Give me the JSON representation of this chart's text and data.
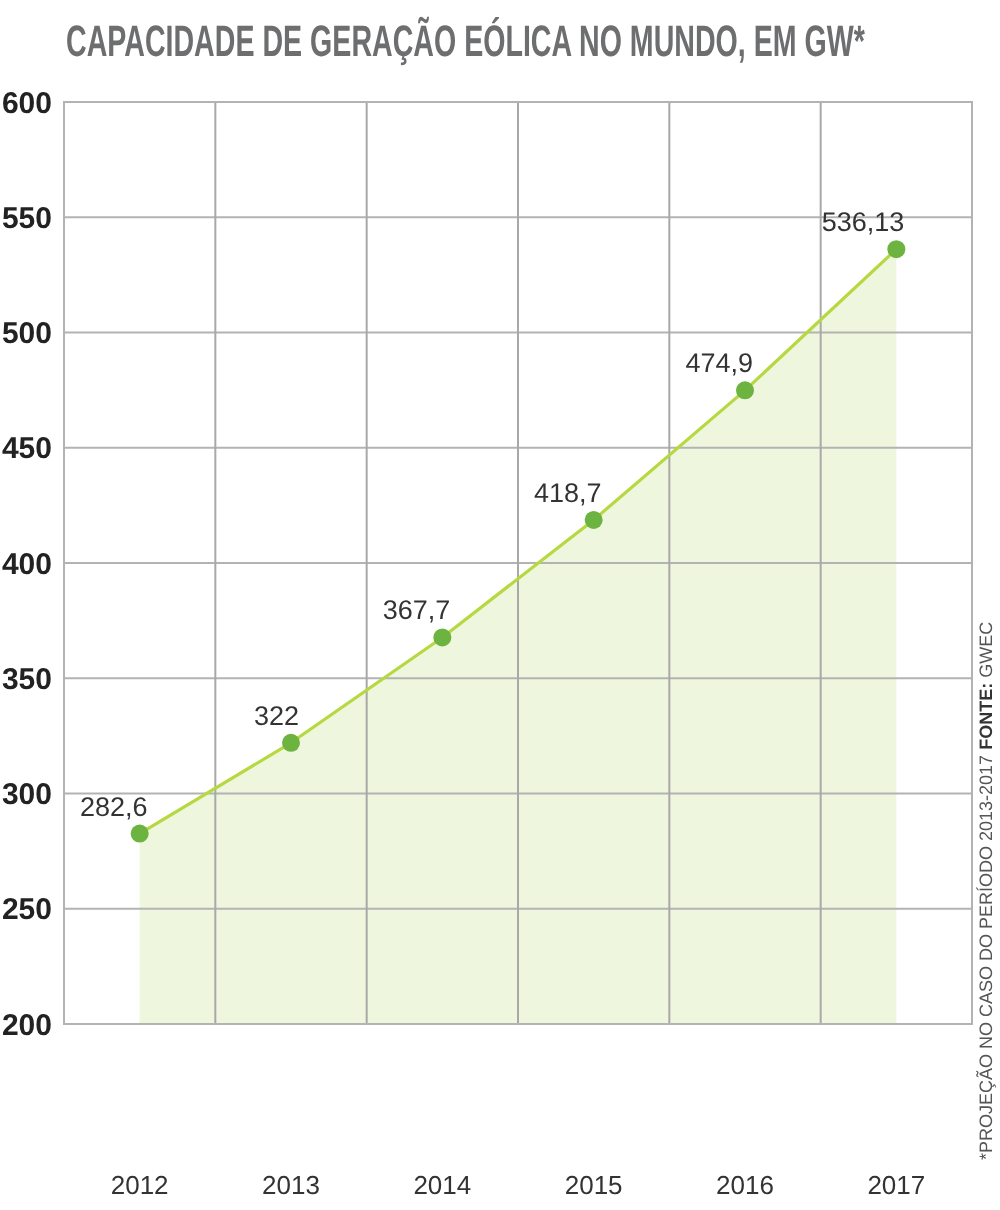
{
  "chart_data": {
    "type": "area",
    "title": "CAPACIDADE DE GERAÇÃO EÓLICA NO MUNDO, EM GW*",
    "categories": [
      "2012",
      "2013",
      "2014",
      "2015",
      "2016",
      "2017"
    ],
    "series": [
      {
        "color": "#6db33f",
        "values": [
          282.6,
          322,
          367.7,
          418.7,
          474.9,
          536.13
        ],
        "value_labels": [
          "282,6",
          "322",
          "367,7",
          "418,7",
          "474,9",
          "536,13"
        ]
      }
    ],
    "ylim": [
      200,
      600
    ],
    "yticks": [
      200,
      250,
      300,
      350,
      400,
      450,
      500,
      550,
      600
    ],
    "grid": true,
    "marker": "circle",
    "annotations": [
      "*PROJEÇÃO NO CASO DO PERÍODO 2013-2017",
      "FONTE: GWEC"
    ]
  }
}
